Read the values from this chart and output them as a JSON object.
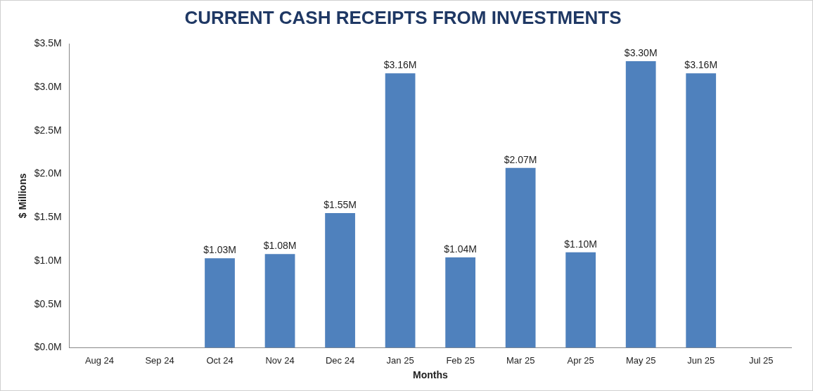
{
  "chart_data": {
    "type": "bar",
    "title": "CURRENT CASH RECEIPTS FROM INVESTMENTS",
    "xlabel": "Months",
    "ylabel": "$ Millions",
    "categories": [
      "Aug 24",
      "Sep 24",
      "Oct 24",
      "Nov 24",
      "Dec 24",
      "Jan 25",
      "Feb 25",
      "Mar 25",
      "Apr 25",
      "May 25",
      "Jun 25",
      "Jul 25"
    ],
    "values": [
      null,
      null,
      1.03,
      1.08,
      1.55,
      3.16,
      1.04,
      2.07,
      1.1,
      3.3,
      3.16,
      null
    ],
    "value_labels": [
      null,
      null,
      "$1.03M",
      "$1.08M",
      "$1.55M",
      "$3.16M",
      "$1.04M",
      "$2.07M",
      "$1.10M",
      "$3.30M",
      "$3.16M",
      null
    ],
    "color": "#4f81bd",
    "ylim": [
      0,
      3.5
    ],
    "yticks": [
      {
        "value": 0,
        "label": "$0.0M"
      },
      {
        "value": 0.5,
        "label": "$0.5M"
      },
      {
        "value": 1,
        "label": "$1.0M"
      },
      {
        "value": 1.5,
        "label": "$1.5M"
      },
      {
        "value": 2,
        "label": "$2.0M"
      },
      {
        "value": 2.5,
        "label": "$2.5M"
      },
      {
        "value": 3,
        "label": "$3.0M"
      },
      {
        "value": 3.5,
        "label": "$3.5M"
      }
    ],
    "grid": false,
    "legend": false
  }
}
